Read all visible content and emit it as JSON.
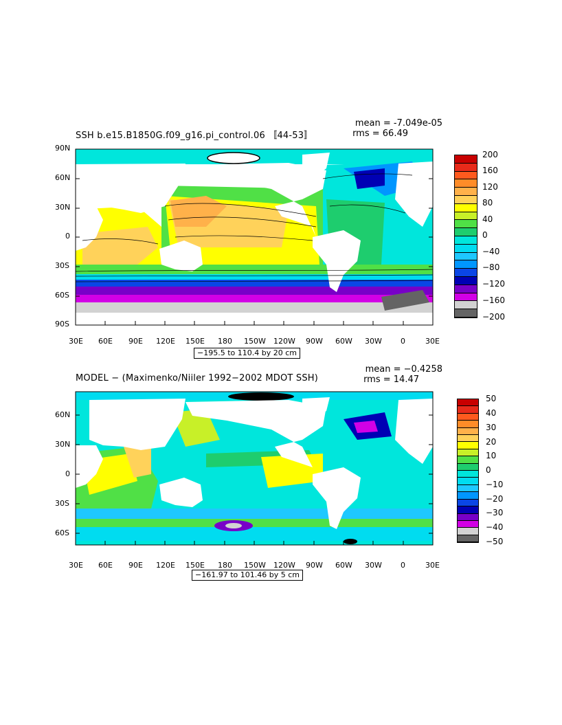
{
  "panels": [
    {
      "id": "top",
      "title": "SSH b.e15.B1850G.f09_g16.pi_control.06 〚44-53〛",
      "stat_mean": "mean = -7.049e-05",
      "stat_rms": "rms = 66.49",
      "range_label": "−195.5 to 110.4 by 20 cm",
      "lon_labels": [
        "30E",
        "60E",
        "90E",
        "120E",
        "150E",
        "180",
        "150W",
        "120W",
        "90W",
        "60W",
        "30W",
        "0",
        "30E"
      ],
      "lat_labels": [
        "90N",
        "60N",
        "30N",
        "0",
        "30S",
        "60S",
        "90S"
      ],
      "colorbar": {
        "labels": [
          "200",
          "160",
          "120",
          "80",
          "40",
          "0",
          "−40",
          "−80",
          "−120",
          "−160",
          "−200"
        ],
        "colors": [
          "#c80000",
          "#e82a1a",
          "#ff5a1e",
          "#ff8c28",
          "#ffb14a",
          "#ffd25a",
          "#ffff00",
          "#c8f028",
          "#50e046",
          "#1ecd6e",
          "#00e6dc",
          "#00dcf0",
          "#1ec8ff",
          "#0096ff",
          "#0a46e6",
          "#0000b4",
          "#7800c8",
          "#d200e6",
          "#d2d2d2",
          "#646464"
        ]
      }
    },
    {
      "id": "bottom",
      "title": "MODEL − (Maximenko/Niiler 1992−2002 MDOT SSH)",
      "stat_mean": "mean = −0.4258",
      "stat_rms": "rms = 14.47",
      "range_label": "−161.97 to 101.46 by 5 cm",
      "lon_labels": [
        "30E",
        "60E",
        "90E",
        "120E",
        "150E",
        "180",
        "150W",
        "120W",
        "90W",
        "60W",
        "30W",
        "0",
        "30E"
      ],
      "lat_labels": [
        "60N",
        "30N",
        "0",
        "30S",
        "60S"
      ],
      "colorbar": {
        "labels": [
          "50",
          "40",
          "30",
          "20",
          "10",
          "0",
          "−10",
          "−20",
          "−30",
          "−40",
          "−50"
        ],
        "colors": [
          "#c80000",
          "#e82a1a",
          "#ff5a1e",
          "#ff8c28",
          "#ffb14a",
          "#ffd25a",
          "#ffff00",
          "#c8f028",
          "#50e046",
          "#1ecd6e",
          "#00e6dc",
          "#00dcf0",
          "#1ec8ff",
          "#0096ff",
          "#0a46e6",
          "#0000b4",
          "#7800c8",
          "#d200e6",
          "#d2d2d2",
          "#646464"
        ]
      }
    }
  ]
}
